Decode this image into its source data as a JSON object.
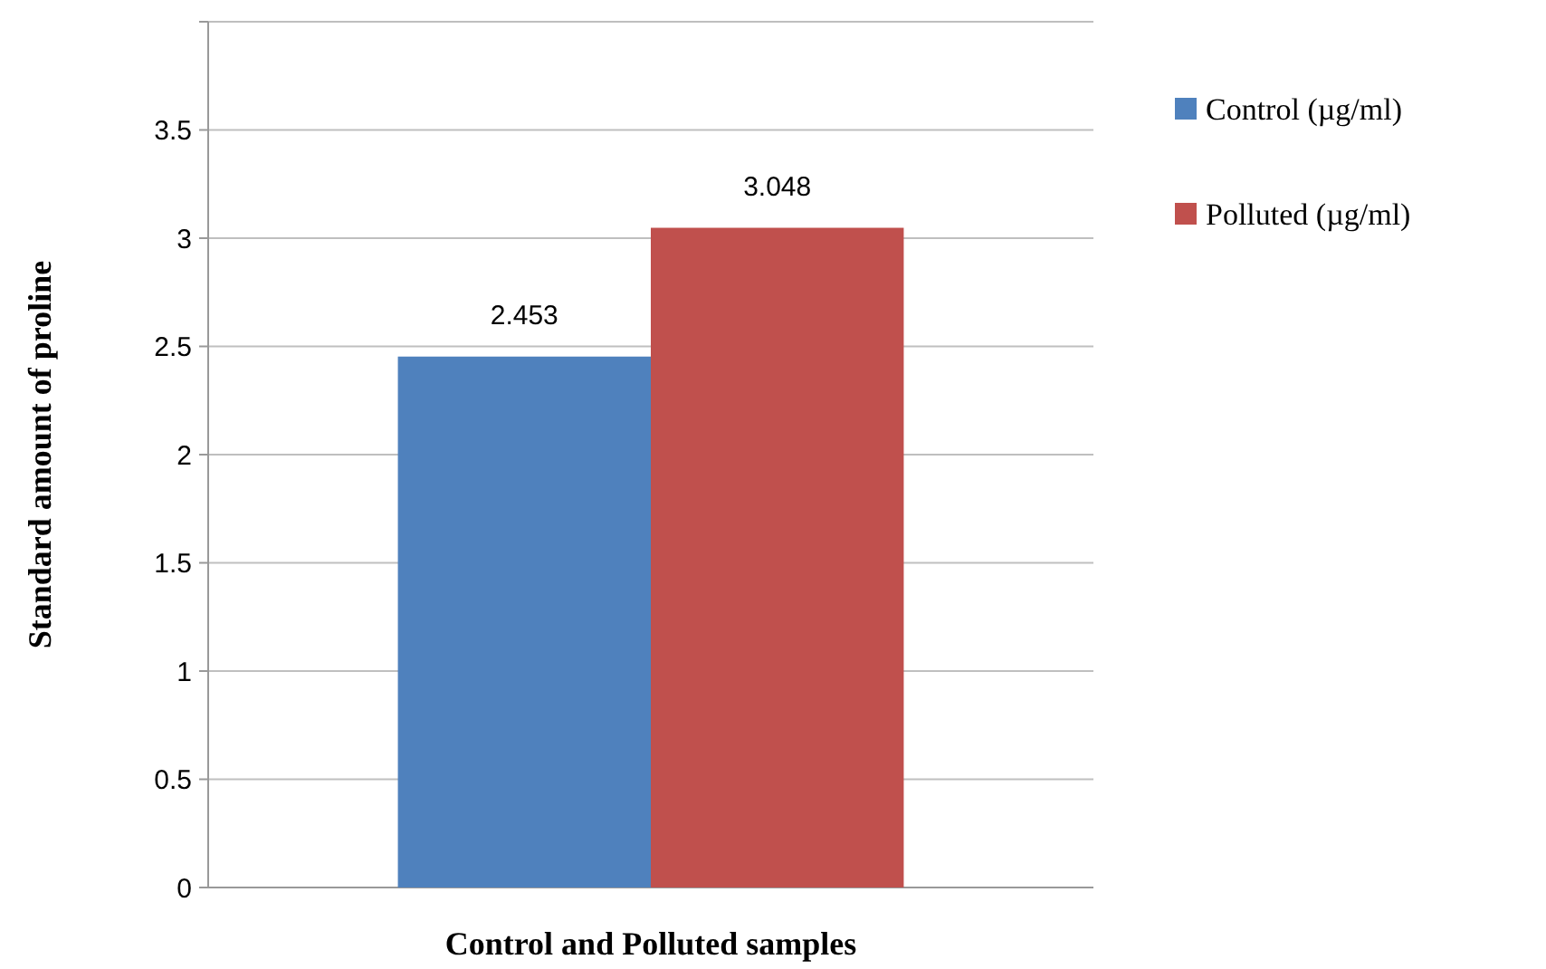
{
  "chart_data": {
    "type": "bar",
    "xlabel": "Control and Polluted samples",
    "ylabel": "Standard amount of proline",
    "categories": [
      null
    ],
    "series": [
      {
        "name": "Control (µg/ml)",
        "color": "#4f81bd",
        "values": [
          2.453
        ]
      },
      {
        "name": "Polluted (µg/ml)",
        "color": "#c0504d",
        "values": [
          3.048
        ]
      }
    ],
    "ylim": [
      0,
      4
    ],
    "yticks": [
      0,
      0.5,
      1,
      1.5,
      2,
      2.5,
      3,
      3.5,
      {
        "value": 4,
        "label": null
      }
    ],
    "grid": "y",
    "legend": "right",
    "data_labels": true
  }
}
